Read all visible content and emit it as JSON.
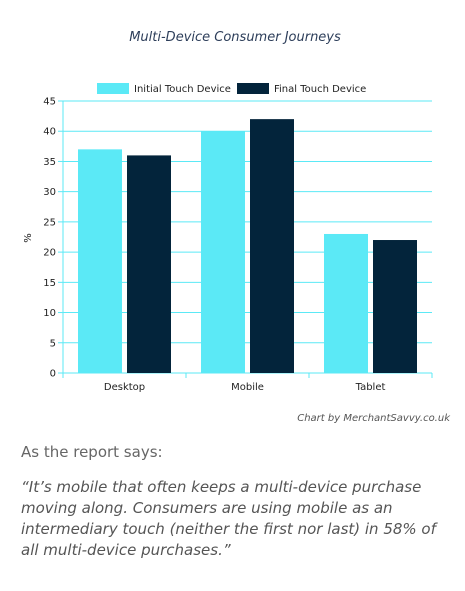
{
  "chart_data": {
    "type": "bar",
    "title": "Multi-Device Consumer Journeys",
    "ylabel": "%",
    "xlabel": "",
    "categories": [
      "Desktop",
      "Mobile",
      "Tablet"
    ],
    "series": [
      {
        "name": "Initial Touch Device",
        "values": [
          37,
          40,
          23
        ],
        "color": "#5be9f6"
      },
      {
        "name": "Final Touch Device",
        "values": [
          36,
          42,
          22
        ],
        "color": "#03243b"
      }
    ],
    "ylim": [
      0,
      45
    ],
    "yticks": [
      0,
      5,
      10,
      15,
      20,
      25,
      30,
      35,
      40,
      45
    ],
    "grid": true,
    "grid_color": "#5be9f6",
    "legend": "top-center"
  },
  "credit": "Chart by MerchantSavvy.co.uk",
  "intro": "As the report says:",
  "quote": "“It’s mobile that often keeps a multi-device purchase moving along. Consumers are using mobile as an intermediary touch (neither the first nor last) in 58% of all multi-device purchases.”"
}
